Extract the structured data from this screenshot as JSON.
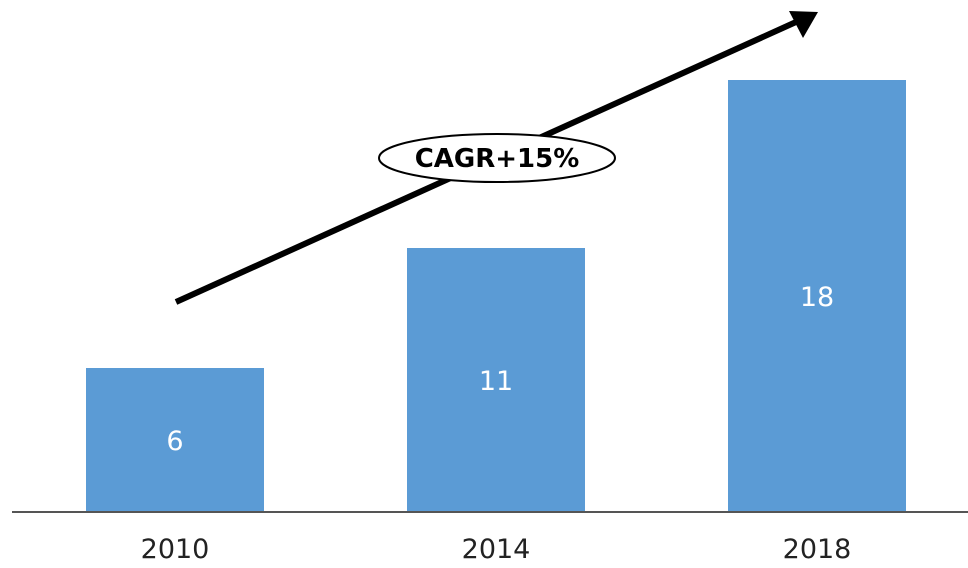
{
  "chart_data": {
    "type": "bar",
    "categories": [
      "2010",
      "2014",
      "2018"
    ],
    "values": [
      6,
      11,
      18
    ],
    "data_labels": [
      "6",
      "11",
      "18"
    ],
    "title": "",
    "xlabel": "",
    "ylabel": "",
    "ylim": [
      0,
      19.5
    ],
    "grid": false,
    "legend": "none",
    "colors": {
      "bar": "#5b9bd5",
      "bar_label": "#ffffff",
      "axis": "#555555",
      "arrow": "#000000"
    },
    "annotation": {
      "text": "CAGR+15%",
      "shape": "ellipse",
      "attached_to": "trend-arrow"
    }
  }
}
